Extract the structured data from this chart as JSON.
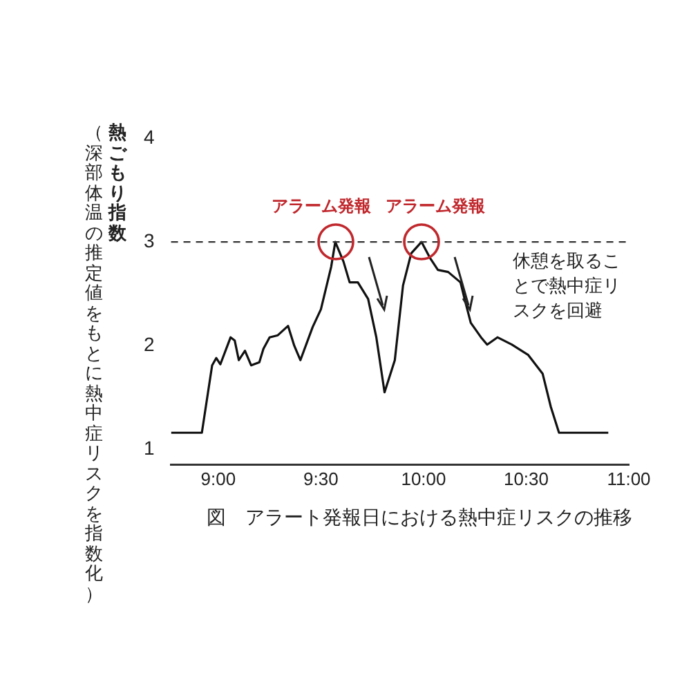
{
  "chart_data": {
    "type": "line",
    "ylabel": "熱ごもり指数（深部体温の推定値をもとに熱中症リスクを指数化）",
    "x": [
      8.77,
      8.92,
      8.97,
      8.99,
      9.01,
      9.06,
      9.08,
      9.1,
      9.13,
      9.16,
      9.2,
      9.22,
      9.25,
      9.29,
      9.34,
      9.37,
      9.4,
      9.46,
      9.5,
      9.55,
      9.57,
      9.61,
      9.64,
      9.68,
      9.73,
      9.77,
      9.81,
      9.86,
      9.9,
      9.94,
      9.99,
      10.03,
      10.07,
      10.12,
      10.18,
      10.2,
      10.23,
      10.28,
      10.31,
      10.36,
      10.43,
      10.51,
      10.58,
      10.62,
      10.66,
      10.9
    ],
    "series": [
      {
        "color": "#111111",
        "values": [
          1.16,
          1.16,
          1.81,
          1.88,
          1.82,
          2.08,
          2.05,
          1.86,
          1.95,
          1.81,
          1.84,
          1.97,
          2.08,
          2.1,
          2.19,
          2.0,
          1.86,
          2.18,
          2.35,
          2.76,
          3.0,
          2.81,
          2.61,
          2.61,
          2.45,
          2.08,
          1.55,
          1.86,
          2.58,
          2.89,
          3.0,
          2.85,
          2.73,
          2.71,
          2.61,
          2.45,
          2.22,
          2.08,
          2.01,
          2.08,
          2.01,
          1.91,
          1.73,
          1.41,
          1.16,
          1.16
        ]
      }
    ],
    "xlim": [
      8.77,
      11.0
    ],
    "xticks": [
      {
        "value": 9,
        "label": "9:00"
      },
      {
        "value": 9.5,
        "label": "9:30"
      },
      {
        "value": 10,
        "label": "10:00"
      },
      {
        "value": 10.5,
        "label": "10:30"
      },
      {
        "value": 11,
        "label": "11:00"
      }
    ],
    "ylim": [
      0.85,
      4
    ],
    "yticks": [
      1,
      2,
      3,
      4
    ],
    "grid": false,
    "legend": false,
    "marker": "none",
    "line_style": "solid",
    "ref_lines": [
      {
        "axis": "y",
        "value": 3,
        "color": "#333333",
        "line_style": "dashed"
      }
    ],
    "annotations": [
      {
        "text": "アラーム発報",
        "x": 9.57,
        "y": 3
      },
      {
        "text": "アラーム発報",
        "x": 9.99,
        "y": 3
      },
      "休憩を取ることで熱中症リスクを回避",
      "図　アラート発報日における熱中症リスクの推移"
    ]
  }
}
